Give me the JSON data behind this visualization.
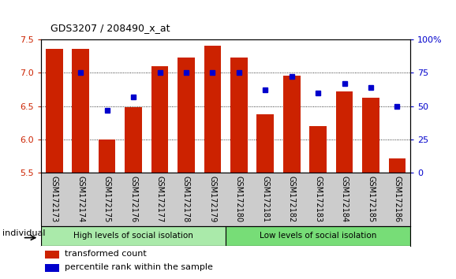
{
  "title": "GDS3207 / 208490_x_at",
  "categories": [
    "GSM172173",
    "GSM172174",
    "GSM172175",
    "GSM172176",
    "GSM172177",
    "GSM172178",
    "GSM172179",
    "GSM172180",
    "GSM172181",
    "GSM172182",
    "GSM172183",
    "GSM172184",
    "GSM172185",
    "GSM172186"
  ],
  "bar_values": [
    7.35,
    7.35,
    6.0,
    6.48,
    7.1,
    7.22,
    7.4,
    7.22,
    6.38,
    6.95,
    6.2,
    6.72,
    6.62,
    5.72
  ],
  "dot_values": [
    null,
    75,
    47,
    57,
    75,
    75,
    75,
    75,
    62,
    72,
    60,
    67,
    64,
    50
  ],
  "bar_color": "#cc2200",
  "dot_color": "#0000cc",
  "ymin": 5.5,
  "ymax": 7.5,
  "yticks": [
    5.5,
    6.0,
    6.5,
    7.0,
    7.5
  ],
  "y2min": 0,
  "y2max": 100,
  "y2ticks": [
    0,
    25,
    50,
    75,
    100
  ],
  "y2tick_labels": [
    "0",
    "25",
    "50",
    "75",
    "100%"
  ],
  "group1_label": "High levels of social isolation",
  "group2_label": "Low levels of social isolation",
  "group1_count": 7,
  "group2_count": 7,
  "group1_color": "#aaeaaa",
  "group2_color": "#77dd77",
  "xtick_bg_color": "#cccccc",
  "legend_red": "transformed count",
  "legend_blue": "percentile rank within the sample",
  "individual_label": "individual"
}
